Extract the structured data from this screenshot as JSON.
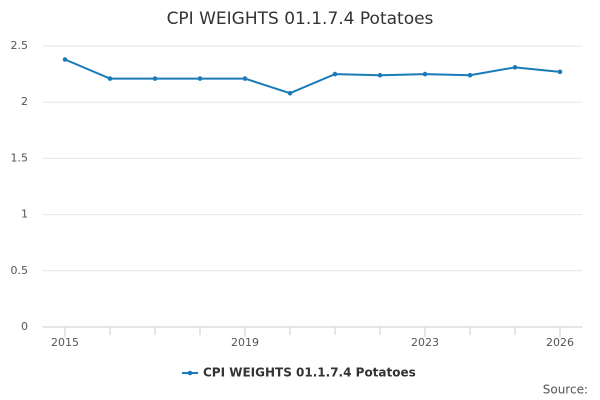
{
  "chart_data": {
    "type": "line",
    "title": "CPI WEIGHTS 01.1.7.4 Potatoes",
    "x": [
      2015,
      2016,
      2017,
      2018,
      2019,
      2020,
      2021,
      2022,
      2023,
      2024,
      2025,
      2026
    ],
    "series": [
      {
        "name": "CPI WEIGHTS 01.1.7.4 Potatoes",
        "color": "#1b7bb8",
        "values": [
          2.38,
          2.21,
          2.21,
          2.21,
          2.21,
          2.08,
          2.25,
          2.24,
          2.25,
          2.24,
          2.31,
          2.27
        ]
      }
    ],
    "xlim": [
      2014.5,
      2026.5
    ],
    "xticks": [
      2015,
      2019,
      2023,
      2026
    ],
    "ylim": [
      0,
      2.5
    ],
    "yticks": [
      0,
      0.5,
      1,
      1.5,
      2,
      2.5
    ],
    "grid": true,
    "source": "Source:"
  }
}
